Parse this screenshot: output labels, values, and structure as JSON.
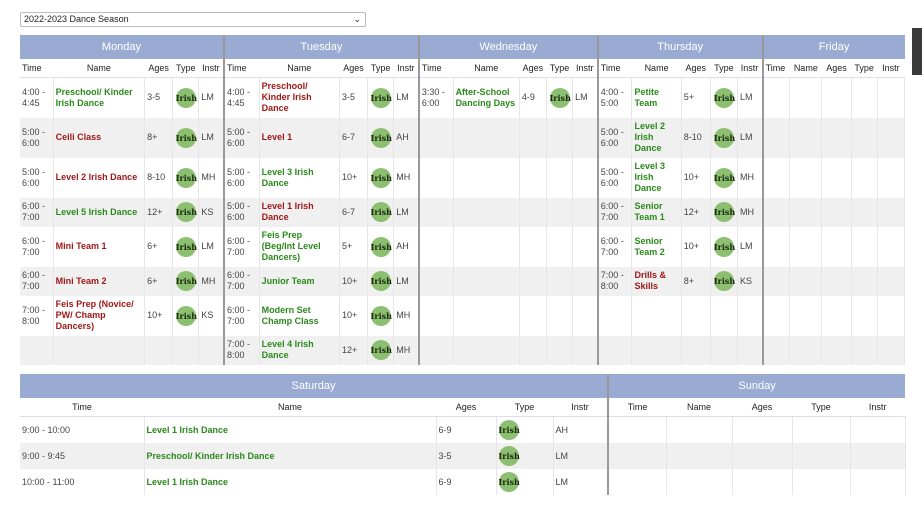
{
  "season_select": {
    "value": "2022-2023 Dance Season",
    "caret": "⌄"
  },
  "badge_text": "Irish",
  "colors": {
    "header_bg": "#9aabd3",
    "green": "#2a8a1a",
    "red": "#a01818",
    "badge": "#8cbf70"
  },
  "week": {
    "days": [
      "Monday",
      "Tuesday",
      "Wednesday",
      "Thursday",
      "Friday"
    ],
    "col_headers": [
      "Time",
      "Name",
      "Ages",
      "Type",
      "Instr"
    ],
    "rows": [
      [
        {
          "time": "4:00 - 4:45",
          "name": "Preschool/ Kinder Irish Dance",
          "color": "green",
          "ages": "3-5",
          "type": "Irish",
          "instr": "LM"
        },
        {
          "time": "4:00 - 4:45",
          "name": "Preschool/ Kinder Irish Dance",
          "color": "red",
          "ages": "3-5",
          "type": "Irish",
          "instr": "LM"
        },
        {
          "time": "3:30 - 6:00",
          "name": "After-School Dancing Days",
          "color": "green",
          "ages": "4-9",
          "type": "Irish",
          "instr": "LM"
        },
        {
          "time": "4:00 - 5:00",
          "name": "Petite Team",
          "color": "green",
          "ages": "5+",
          "type": "Irish",
          "instr": "LM"
        },
        null
      ],
      [
        {
          "time": "5:00 - 6:00",
          "name": "Ceili Class",
          "color": "red",
          "ages": "8+",
          "type": "Irish",
          "instr": "LM"
        },
        {
          "time": "5:00 - 6:00",
          "name": "Level 1",
          "color": "red",
          "ages": "6-7",
          "type": "Irish",
          "instr": "AH"
        },
        null,
        {
          "time": "5:00 - 6:00",
          "name": "Level 2 Irish Dance",
          "color": "green",
          "ages": "8-10",
          "type": "Irish",
          "instr": "LM"
        },
        null
      ],
      [
        {
          "time": "5:00 - 6:00",
          "name": "Level 2 Irish Dance",
          "color": "red",
          "ages": "8-10",
          "type": "Irish",
          "instr": "MH"
        },
        {
          "time": "5:00 - 6:00",
          "name": "Level 3 Irish Dance",
          "color": "green",
          "ages": "10+",
          "type": "Irish",
          "instr": "MH"
        },
        null,
        {
          "time": "5:00 - 6:00",
          "name": "Level 3 Irish Dance",
          "color": "green",
          "ages": "10+",
          "type": "Irish",
          "instr": "MH"
        },
        null
      ],
      [
        {
          "time": "6:00 - 7:00",
          "name": "Level 5 Irish Dance",
          "color": "green",
          "ages": "12+",
          "type": "Irish",
          "instr": "KS"
        },
        {
          "time": "5:00 - 6:00",
          "name": "Level 1 Irish Dance",
          "color": "red",
          "ages": "6-7",
          "type": "Irish",
          "instr": "LM"
        },
        null,
        {
          "time": "6:00 - 7:00",
          "name": "Senior Team 1",
          "color": "green",
          "ages": "12+",
          "type": "Irish",
          "instr": "MH"
        },
        null
      ],
      [
        {
          "time": "6:00 - 7:00",
          "name": "Mini Team 1",
          "color": "red",
          "ages": "6+",
          "type": "Irish",
          "instr": "LM"
        },
        {
          "time": "6:00 - 7:00",
          "name": "Feis Prep (Beg/Int Level Dancers)",
          "color": "green",
          "ages": "5+",
          "type": "Irish",
          "instr": "AH"
        },
        null,
        {
          "time": "6:00 - 7:00",
          "name": "Senior Team 2",
          "color": "green",
          "ages": "10+",
          "type": "Irish",
          "instr": "LM"
        },
        null
      ],
      [
        {
          "time": "6:00 - 7:00",
          "name": "Mini Team 2",
          "color": "red",
          "ages": "6+",
          "type": "Irish",
          "instr": "MH"
        },
        {
          "time": "6:00 - 7:00",
          "name": "Junior Team",
          "color": "green",
          "ages": "10+",
          "type": "Irish",
          "instr": "LM"
        },
        null,
        {
          "time": "7:00 - 8:00",
          "name": "Drills & Skills",
          "color": "red",
          "ages": "8+",
          "type": "Irish",
          "instr": "KS"
        },
        null
      ],
      [
        {
          "time": "7:00 - 8:00",
          "name": "Feis Prep (Novice/ PW/ Champ Dancers)",
          "color": "red",
          "ages": "10+",
          "type": "Irish",
          "instr": "KS"
        },
        {
          "time": "6:00 - 7:00",
          "name": "Modern Set Champ Class",
          "color": "green",
          "ages": "10+",
          "type": "Irish",
          "instr": "MH"
        },
        null,
        null,
        null
      ],
      [
        null,
        {
          "time": "7:00 - 8:00",
          "name": "Level 4 Irish Dance",
          "color": "green",
          "ages": "12+",
          "type": "Irish",
          "instr": "MH"
        },
        null,
        null,
        null
      ]
    ]
  },
  "weekend": {
    "days": [
      "Saturday",
      "Sunday"
    ],
    "col_headers": [
      "Time",
      "Name",
      "Ages",
      "Type",
      "Instr"
    ],
    "rows": [
      [
        {
          "time": "9:00 - 10:00",
          "name": "Level 1 Irish Dance",
          "color": "green",
          "ages": "6-9",
          "type": "Irish",
          "instr": "AH"
        },
        null
      ],
      [
        {
          "time": "9:00 - 9:45",
          "name": "Preschool/ Kinder Irish Dance",
          "color": "green",
          "ages": "3-5",
          "type": "Irish",
          "instr": "LM"
        },
        null
      ],
      [
        {
          "time": "10:00 - 11:00",
          "name": "Level 1 Irish Dance",
          "color": "green",
          "ages": "6-9",
          "type": "Irish",
          "instr": "LM"
        },
        null
      ]
    ]
  }
}
